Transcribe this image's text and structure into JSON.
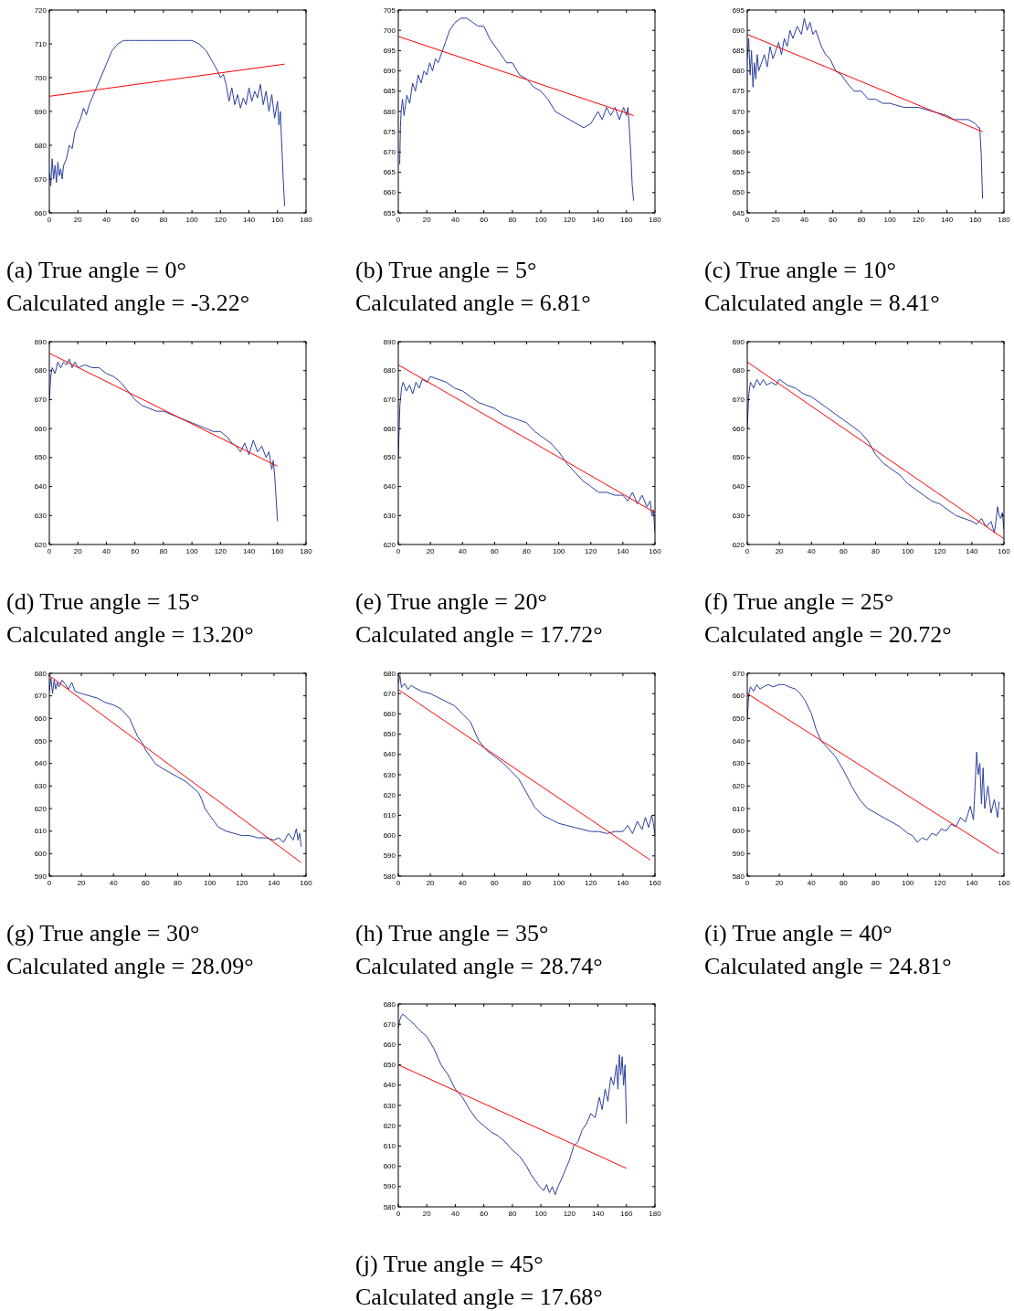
{
  "chart_data": [
    {
      "type": "line",
      "xlim": [
        0,
        180
      ],
      "xticks": [
        0,
        20,
        40,
        60,
        80,
        100,
        120,
        140,
        160,
        180
      ],
      "ylim": [
        660,
        720
      ],
      "yticks": [
        660,
        670,
        680,
        690,
        700,
        710,
        720
      ],
      "annotations": [
        "(a) True angle = 0°",
        "Calculated angle = -3.22°"
      ],
      "series": [
        {
          "color": "#2a3f9e",
          "x": [
            0,
            1,
            2,
            3,
            4,
            5,
            6,
            7,
            8,
            9,
            10,
            12,
            14,
            16,
            18,
            20,
            22,
            24,
            26,
            28,
            30,
            33,
            36,
            40,
            44,
            48,
            52,
            56,
            60,
            70,
            80,
            90,
            100,
            105,
            110,
            114,
            118,
            120,
            122,
            124,
            126,
            128,
            130,
            132,
            134,
            136,
            138,
            140,
            142,
            144,
            146,
            148,
            150,
            152,
            154,
            156,
            158,
            160,
            161,
            162,
            163,
            164,
            165
          ],
          "values": [
            672,
            668,
            676,
            670,
            674,
            669,
            675,
            671,
            673,
            670,
            674,
            676,
            680,
            679,
            684,
            686,
            688,
            691,
            689,
            692,
            694,
            697,
            700,
            704,
            708,
            710,
            711,
            711,
            711,
            711,
            711,
            711,
            711,
            710,
            708,
            705,
            702,
            700,
            701,
            698,
            693,
            697,
            692,
            695,
            691,
            694,
            692,
            697,
            693,
            696,
            694,
            698,
            692,
            696,
            690,
            695,
            688,
            693,
            686,
            690,
            680,
            670,
            662
          ]
        },
        {
          "color": "#ff0000",
          "x": [
            0,
            165
          ],
          "values": [
            694.5,
            704
          ]
        }
      ]
    },
    {
      "type": "line",
      "xlim": [
        0,
        180
      ],
      "xticks": [
        0,
        20,
        40,
        60,
        80,
        100,
        120,
        140,
        160,
        180
      ],
      "ylim": [
        655,
        705
      ],
      "yticks": [
        655,
        660,
        665,
        670,
        675,
        680,
        685,
        690,
        695,
        700,
        705
      ],
      "annotations": [
        "(b) True angle = 5°",
        "Calculated angle = 6.81°"
      ],
      "series": [
        {
          "color": "#2a3f9e",
          "x": [
            1,
            1.5,
            2,
            3,
            4,
            6,
            8,
            10,
            12,
            14,
            16,
            18,
            20,
            22,
            24,
            26,
            28,
            30,
            33,
            36,
            40,
            44,
            48,
            52,
            56,
            60,
            64,
            68,
            72,
            76,
            80,
            85,
            90,
            95,
            100,
            105,
            110,
            115,
            120,
            125,
            130,
            135,
            140,
            143,
            146,
            149,
            152,
            155,
            158,
            160,
            161,
            162,
            163,
            164,
            165
          ],
          "values": [
            667,
            676,
            680,
            683,
            679,
            684,
            682,
            687,
            685,
            689,
            687,
            690,
            689,
            692,
            690,
            693,
            692,
            694,
            697,
            700,
            702,
            703,
            703,
            702,
            701,
            701,
            698,
            696,
            694,
            692,
            692,
            689,
            688,
            686,
            685,
            683,
            680,
            679,
            678,
            677,
            676,
            677,
            680,
            678,
            681,
            679,
            681,
            678,
            681,
            679,
            681,
            676,
            670,
            662,
            658
          ]
        },
        {
          "color": "#ff0000",
          "x": [
            0,
            165
          ],
          "values": [
            698.5,
            679
          ]
        }
      ]
    },
    {
      "type": "line",
      "xlim": [
        0,
        180
      ],
      "xticks": [
        0,
        20,
        40,
        60,
        80,
        100,
        120,
        140,
        160,
        180
      ],
      "ylim": [
        645,
        695
      ],
      "yticks": [
        645,
        650,
        655,
        660,
        665,
        670,
        675,
        680,
        685,
        690,
        695
      ],
      "annotations": [
        "(c) True angle = 10°",
        "Calculated angle = 8.41°"
      ],
      "series": [
        {
          "color": "#2a3f9e",
          "x": [
            0,
            1,
            2,
            3,
            4,
            5,
            6,
            7,
            8,
            10,
            12,
            14,
            16,
            18,
            20,
            22,
            24,
            26,
            28,
            30,
            32,
            35,
            38,
            40,
            42,
            44,
            46,
            48,
            50,
            52,
            55,
            58,
            62,
            66,
            70,
            75,
            80,
            85,
            90,
            95,
            100,
            110,
            120,
            130,
            140,
            145,
            150,
            155,
            160,
            162,
            163,
            164,
            165
          ],
          "values": [
            683,
            688,
            679,
            685,
            676,
            682,
            678,
            684,
            680,
            682,
            684,
            681,
            686,
            683,
            685,
            687,
            684,
            688,
            686,
            690,
            688,
            691,
            689,
            693,
            690,
            692,
            689,
            690,
            688,
            686,
            684,
            683,
            680,
            679,
            677,
            675,
            675,
            673,
            673,
            672,
            672,
            671,
            671,
            670,
            669,
            668,
            668,
            668,
            667,
            666,
            666,
            660,
            648.5
          ]
        },
        {
          "color": "#ff0000",
          "x": [
            0,
            165
          ],
          "values": [
            689,
            665
          ]
        }
      ]
    },
    {
      "type": "line",
      "xlim": [
        0,
        180
      ],
      "xticks": [
        0,
        20,
        40,
        60,
        80,
        100,
        120,
        140,
        160,
        180
      ],
      "ylim": [
        620,
        690
      ],
      "yticks": [
        620,
        630,
        640,
        650,
        660,
        670,
        680,
        690
      ],
      "annotations": [
        "(d) True angle = 15°",
        "Calculated angle = 13.20°"
      ],
      "series": [
        {
          "color": "#2a3f9e",
          "x": [
            0,
            1,
            2,
            4,
            6,
            8,
            10,
            12,
            14,
            16,
            18,
            20,
            25,
            30,
            35,
            40,
            45,
            50,
            55,
            60,
            65,
            70,
            75,
            80,
            85,
            90,
            95,
            100,
            105,
            110,
            115,
            120,
            125,
            128,
            131,
            134,
            137,
            140,
            143,
            146,
            149,
            152,
            154,
            156,
            157,
            158,
            159,
            160
          ],
          "values": [
            670,
            678,
            681,
            679,
            683,
            681,
            683,
            682,
            684,
            681,
            683,
            681,
            682,
            681,
            681,
            679,
            678,
            676,
            673,
            670,
            668,
            667,
            666,
            666,
            665,
            664,
            663,
            662,
            661,
            660,
            659,
            659,
            657,
            655,
            654,
            652,
            655,
            651,
            656,
            652,
            654,
            650,
            652,
            646,
            649,
            644,
            636,
            628
          ]
        },
        {
          "color": "#ff0000",
          "x": [
            0,
            160
          ],
          "values": [
            686,
            647
          ]
        }
      ]
    },
    {
      "type": "line",
      "xlim": [
        0,
        160
      ],
      "xticks": [
        0,
        20,
        40,
        60,
        80,
        100,
        120,
        140,
        160
      ],
      "ylim": [
        620,
        690
      ],
      "yticks": [
        620,
        630,
        640,
        650,
        660,
        670,
        680,
        690
      ],
      "annotations": [
        "(e) True angle = 20°",
        "Calculated angle = 17.72°"
      ],
      "series": [
        {
          "color": "#2a3f9e",
          "x": [
            0,
            1,
            2,
            3,
            5,
            7,
            9,
            11,
            13,
            15,
            18,
            20,
            25,
            30,
            35,
            40,
            45,
            50,
            55,
            60,
            65,
            70,
            75,
            80,
            85,
            90,
            95,
            100,
            105,
            110,
            115,
            120,
            125,
            130,
            135,
            140,
            143,
            146,
            149,
            152,
            155,
            157,
            158,
            159,
            160
          ],
          "values": [
            650,
            668,
            674,
            676,
            673,
            675,
            672,
            676,
            674,
            677,
            676,
            678,
            677,
            676,
            674,
            673,
            671,
            669,
            668,
            667,
            665,
            664,
            663,
            662,
            659,
            657,
            655,
            652,
            648,
            645,
            642,
            640,
            638,
            638,
            637,
            637,
            635,
            638,
            634,
            637,
            633,
            635,
            630,
            632,
            624
          ]
        },
        {
          "color": "#ff0000",
          "x": [
            0,
            160
          ],
          "values": [
            682,
            631
          ]
        }
      ]
    },
    {
      "type": "line",
      "xlim": [
        0,
        160
      ],
      "xticks": [
        0,
        20,
        40,
        60,
        80,
        100,
        120,
        140,
        160
      ],
      "ylim": [
        620,
        690
      ],
      "yticks": [
        620,
        630,
        640,
        650,
        660,
        670,
        680,
        690
      ],
      "annotations": [
        "(f) True angle = 25°",
        "Calculated angle = 20.72°"
      ],
      "series": [
        {
          "color": "#2a3f9e",
          "x": [
            0,
            1,
            2,
            4,
            6,
            8,
            10,
            12,
            15,
            18,
            20,
            25,
            30,
            35,
            40,
            45,
            50,
            55,
            60,
            65,
            70,
            75,
            80,
            85,
            90,
            95,
            100,
            105,
            110,
            115,
            120,
            125,
            130,
            135,
            140,
            143,
            146,
            149,
            152,
            154,
            155,
            156,
            157,
            158,
            159,
            160
          ],
          "values": [
            660,
            672,
            676,
            674,
            677,
            675,
            677,
            675,
            676,
            675,
            677,
            675,
            674,
            672,
            671,
            669,
            667,
            665,
            663,
            661,
            659,
            656,
            651,
            648,
            646,
            644,
            641,
            639,
            637,
            635,
            634,
            632,
            630,
            629,
            628,
            627,
            629,
            626,
            628,
            624,
            628,
            633,
            630,
            629,
            631,
            625
          ]
        },
        {
          "color": "#ff0000",
          "x": [
            0,
            160
          ],
          "values": [
            683,
            622
          ]
        }
      ]
    },
    {
      "type": "line",
      "xlim": [
        0,
        160
      ],
      "xticks": [
        0,
        20,
        40,
        60,
        80,
        100,
        120,
        140,
        160
      ],
      "ylim": [
        590,
        680
      ],
      "yticks": [
        590,
        600,
        610,
        620,
        630,
        640,
        650,
        660,
        670,
        680
      ],
      "annotations": [
        "(g) True angle = 30°",
        "Calculated angle = 28.09°"
      ],
      "series": [
        {
          "color": "#2a3f9e",
          "x": [
            0,
            1,
            2,
            3,
            4,
            5,
            6,
            8,
            10,
            12,
            14,
            16,
            20,
            25,
            30,
            35,
            40,
            45,
            50,
            55,
            58,
            60,
            63,
            66,
            70,
            75,
            80,
            85,
            90,
            93,
            95,
            97,
            100,
            105,
            110,
            115,
            120,
            125,
            130,
            135,
            140,
            143,
            146,
            149,
            152,
            154,
            155,
            156,
            157
          ],
          "values": [
            672,
            678,
            671,
            677,
            673,
            676,
            674,
            677,
            675,
            673,
            676,
            672,
            671,
            670,
            669,
            667,
            666,
            664,
            660,
            652,
            649,
            646,
            643,
            640,
            638,
            636,
            634,
            632,
            629,
            627,
            624,
            620,
            617,
            612,
            610,
            609,
            608,
            608,
            607,
            607,
            606,
            607,
            605,
            609,
            606,
            611,
            606,
            609,
            603
          ]
        },
        {
          "color": "#ff0000",
          "x": [
            0,
            157
          ],
          "values": [
            679,
            596
          ]
        }
      ]
    },
    {
      "type": "line",
      "xlim": [
        0,
        160
      ],
      "xticks": [
        0,
        20,
        40,
        60,
        80,
        100,
        120,
        140,
        160
      ],
      "ylim": [
        580,
        680
      ],
      "yticks": [
        580,
        590,
        600,
        610,
        620,
        630,
        640,
        650,
        660,
        670,
        680
      ],
      "annotations": [
        "(h) True angle = 35°",
        "Calculated angle = 28.74°"
      ],
      "series": [
        {
          "color": "#2a3f9e",
          "x": [
            0,
            1,
            2,
            4,
            6,
            8,
            10,
            15,
            20,
            25,
            30,
            35,
            40,
            45,
            50,
            55,
            60,
            65,
            70,
            75,
            80,
            85,
            90,
            95,
            100,
            105,
            110,
            115,
            120,
            125,
            130,
            135,
            140,
            143,
            146,
            149,
            152,
            154,
            156,
            158,
            159,
            160
          ],
          "values": [
            675,
            679,
            673,
            675,
            672,
            674,
            673,
            671,
            670,
            668,
            666,
            664,
            660,
            656,
            647,
            642,
            639,
            636,
            632,
            628,
            621,
            614,
            610,
            608,
            606,
            605,
            604,
            603,
            602,
            602,
            601,
            602,
            602,
            605,
            601,
            607,
            603,
            609,
            604,
            610,
            606,
            600
          ]
        },
        {
          "color": "#ff0000",
          "x": [
            0,
            157
          ],
          "values": [
            672,
            588
          ]
        }
      ]
    },
    {
      "type": "line",
      "xlim": [
        0,
        160
      ],
      "xticks": [
        0,
        20,
        40,
        60,
        80,
        100,
        120,
        140,
        160
      ],
      "ylim": [
        580,
        670
      ],
      "yticks": [
        580,
        590,
        600,
        610,
        620,
        630,
        640,
        650,
        660,
        670
      ],
      "annotations": [
        "(i) True angle = 40°",
        "Calculated angle = 24.81°"
      ],
      "series": [
        {
          "color": "#2a3f9e",
          "x": [
            0,
            1,
            2,
            4,
            6,
            8,
            10,
            13,
            16,
            20,
            23,
            26,
            30,
            33,
            36,
            40,
            43,
            46,
            50,
            55,
            60,
            65,
            70,
            75,
            80,
            85,
            90,
            95,
            100,
            103,
            106,
            109,
            112,
            115,
            118,
            121,
            124,
            127,
            130,
            133,
            136,
            139,
            141,
            142,
            143,
            144,
            145,
            146,
            147,
            148,
            150,
            152,
            154,
            156,
            157
          ],
          "values": [
            650,
            661,
            664,
            662,
            665,
            663,
            664,
            665,
            664,
            665,
            665,
            664,
            663,
            661,
            658,
            652,
            645,
            640,
            637,
            633,
            627,
            620,
            614,
            610,
            608,
            606,
            604,
            602,
            599,
            598,
            595,
            597,
            596,
            599,
            598,
            601,
            600,
            603,
            602,
            606,
            604,
            611,
            605,
            620,
            635,
            625,
            630,
            612,
            628,
            610,
            620,
            608,
            614,
            606,
            613
          ]
        },
        {
          "color": "#ff0000",
          "x": [
            0,
            157
          ],
          "values": [
            661,
            590
          ]
        }
      ]
    },
    {
      "type": "line",
      "xlim": [
        0,
        180
      ],
      "xticks": [
        0,
        20,
        40,
        60,
        80,
        100,
        120,
        140,
        160,
        180
      ],
      "ylim": [
        580,
        680
      ],
      "yticks": [
        580,
        590,
        600,
        610,
        620,
        630,
        640,
        650,
        660,
        670,
        680
      ],
      "annotations": [
        "(j) True angle = 45°",
        "Calculated angle = 17.68°"
      ],
      "series": [
        {
          "color": "#2a3f9e",
          "x": [
            0,
            1,
            2,
            3,
            5,
            8,
            11,
            15,
            20,
            25,
            30,
            35,
            40,
            45,
            50,
            55,
            60,
            65,
            70,
            75,
            80,
            85,
            90,
            93,
            96,
            99,
            102,
            104,
            106,
            108,
            110,
            112,
            114,
            117,
            120,
            123,
            126,
            129,
            132,
            135,
            138,
            141,
            143,
            145,
            147,
            149,
            151,
            153,
            154,
            155,
            156,
            157,
            158,
            159,
            160
          ],
          "values": [
            668,
            672,
            674,
            675,
            674,
            672,
            670,
            667,
            664,
            658,
            650,
            645,
            638,
            634,
            628,
            623,
            620,
            617,
            615,
            612,
            608,
            605,
            600,
            596,
            593,
            590,
            588,
            591,
            587,
            590,
            586,
            590,
            593,
            598,
            603,
            610,
            612,
            618,
            621,
            626,
            624,
            634,
            628,
            638,
            632,
            644,
            640,
            650,
            638,
            655,
            645,
            654,
            640,
            650,
            621
          ]
        },
        {
          "color": "#ff0000",
          "x": [
            0,
            160
          ],
          "values": [
            650,
            599
          ]
        }
      ]
    }
  ]
}
